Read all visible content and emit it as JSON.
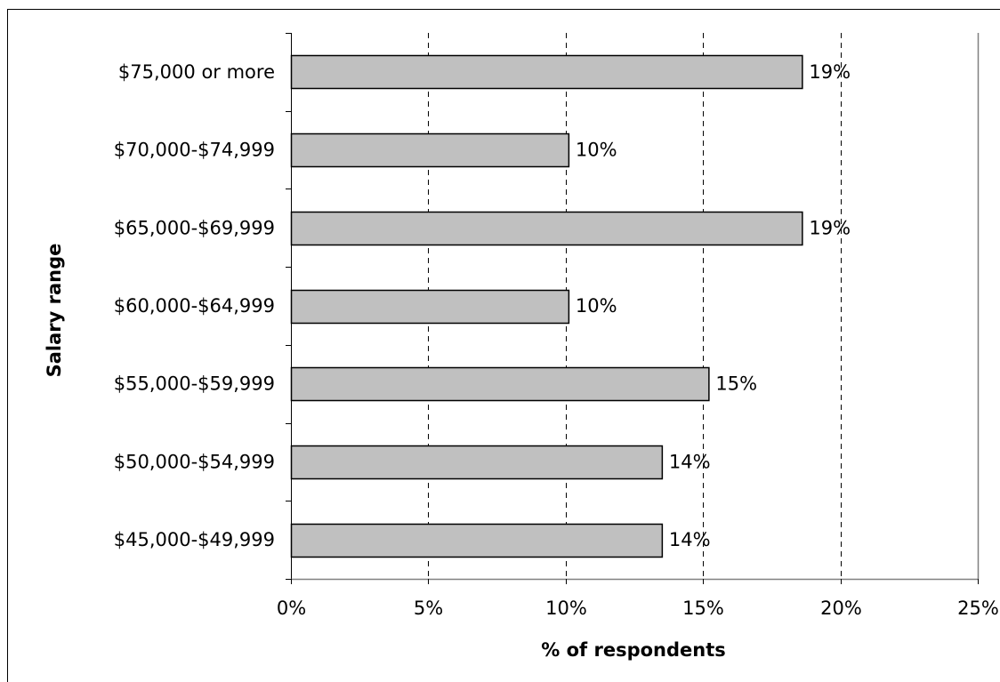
{
  "chart_data": {
    "type": "bar",
    "orientation": "horizontal",
    "categories": [
      "$75,000 or more",
      "$70,000-$74,999",
      "$65,000-$69,999",
      "$60,000-$64,999",
      "$55,000-$59,999",
      "$50,000-$54,999",
      "$45,000-$49,999"
    ],
    "values": [
      18.6,
      10.1,
      18.6,
      10.1,
      15.2,
      13.5,
      13.5
    ],
    "data_labels": [
      "19%",
      "10%",
      "19%",
      "10%",
      "15%",
      "14%",
      "14%"
    ],
    "title": "",
    "xlabel": "% of respondents",
    "ylabel": "Salary range",
    "xlim": [
      0,
      25
    ],
    "x_ticks": [
      0,
      5,
      10,
      15,
      20,
      25
    ],
    "x_tick_labels": [
      "0%",
      "5%",
      "10%",
      "15%",
      "20%",
      "25%"
    ],
    "grid": "vertical dashed",
    "legend": "none",
    "colors": {
      "bar_fill": "#c0c0c0",
      "bar_stroke": "#000000",
      "grid": "#000000",
      "axis": "#000000",
      "background": "#ffffff"
    }
  }
}
